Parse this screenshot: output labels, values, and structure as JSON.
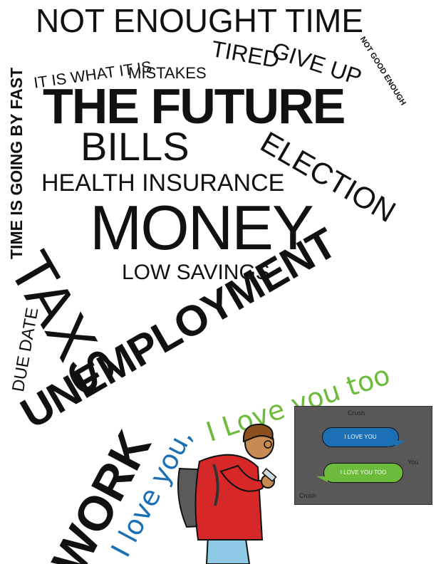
{
  "words": {
    "not_enough_time": "NOT ENOUGHT TIME",
    "time_fast": "TIME IS GOING BY FAST",
    "it_is_what": "IT IS WHAT IT IS",
    "tired": "TIRED",
    "give_up": "GIVE UP",
    "not_good_enough": "NOT GOOD ENOUGH",
    "mistakes": "MISTAKES",
    "the_future": "THE FUTURE",
    "bills": "BILLS",
    "election": "ELECTION",
    "health_insurance": "HEALTH INSURANCE",
    "money": "MONEY",
    "low_savings": "LOW SAVINGS",
    "taxs": "TAXS",
    "due_date": "DUE DATE",
    "unemployment": "UNEMPLOYMENT",
    "work": "WORK",
    "i_love_you_blue": "I love you,",
    "i_love_you_too_green": "I Love you too"
  },
  "chat": {
    "top_label": "Crush",
    "bubble_1": "I LOVE YOU",
    "side_label": "You",
    "bubble_2": "I LOVE YOU TOO",
    "bottom_label": "Crush"
  },
  "colors": {
    "text": "#111111",
    "blue": "#1a6fb5",
    "green": "#6cbb3c",
    "panel": "#585858",
    "shirt": "#d62828",
    "backpack": "#5a5a5a",
    "pants": "#8ecae6",
    "hair": "#8a4f1c",
    "skin": "#c68a52"
  }
}
